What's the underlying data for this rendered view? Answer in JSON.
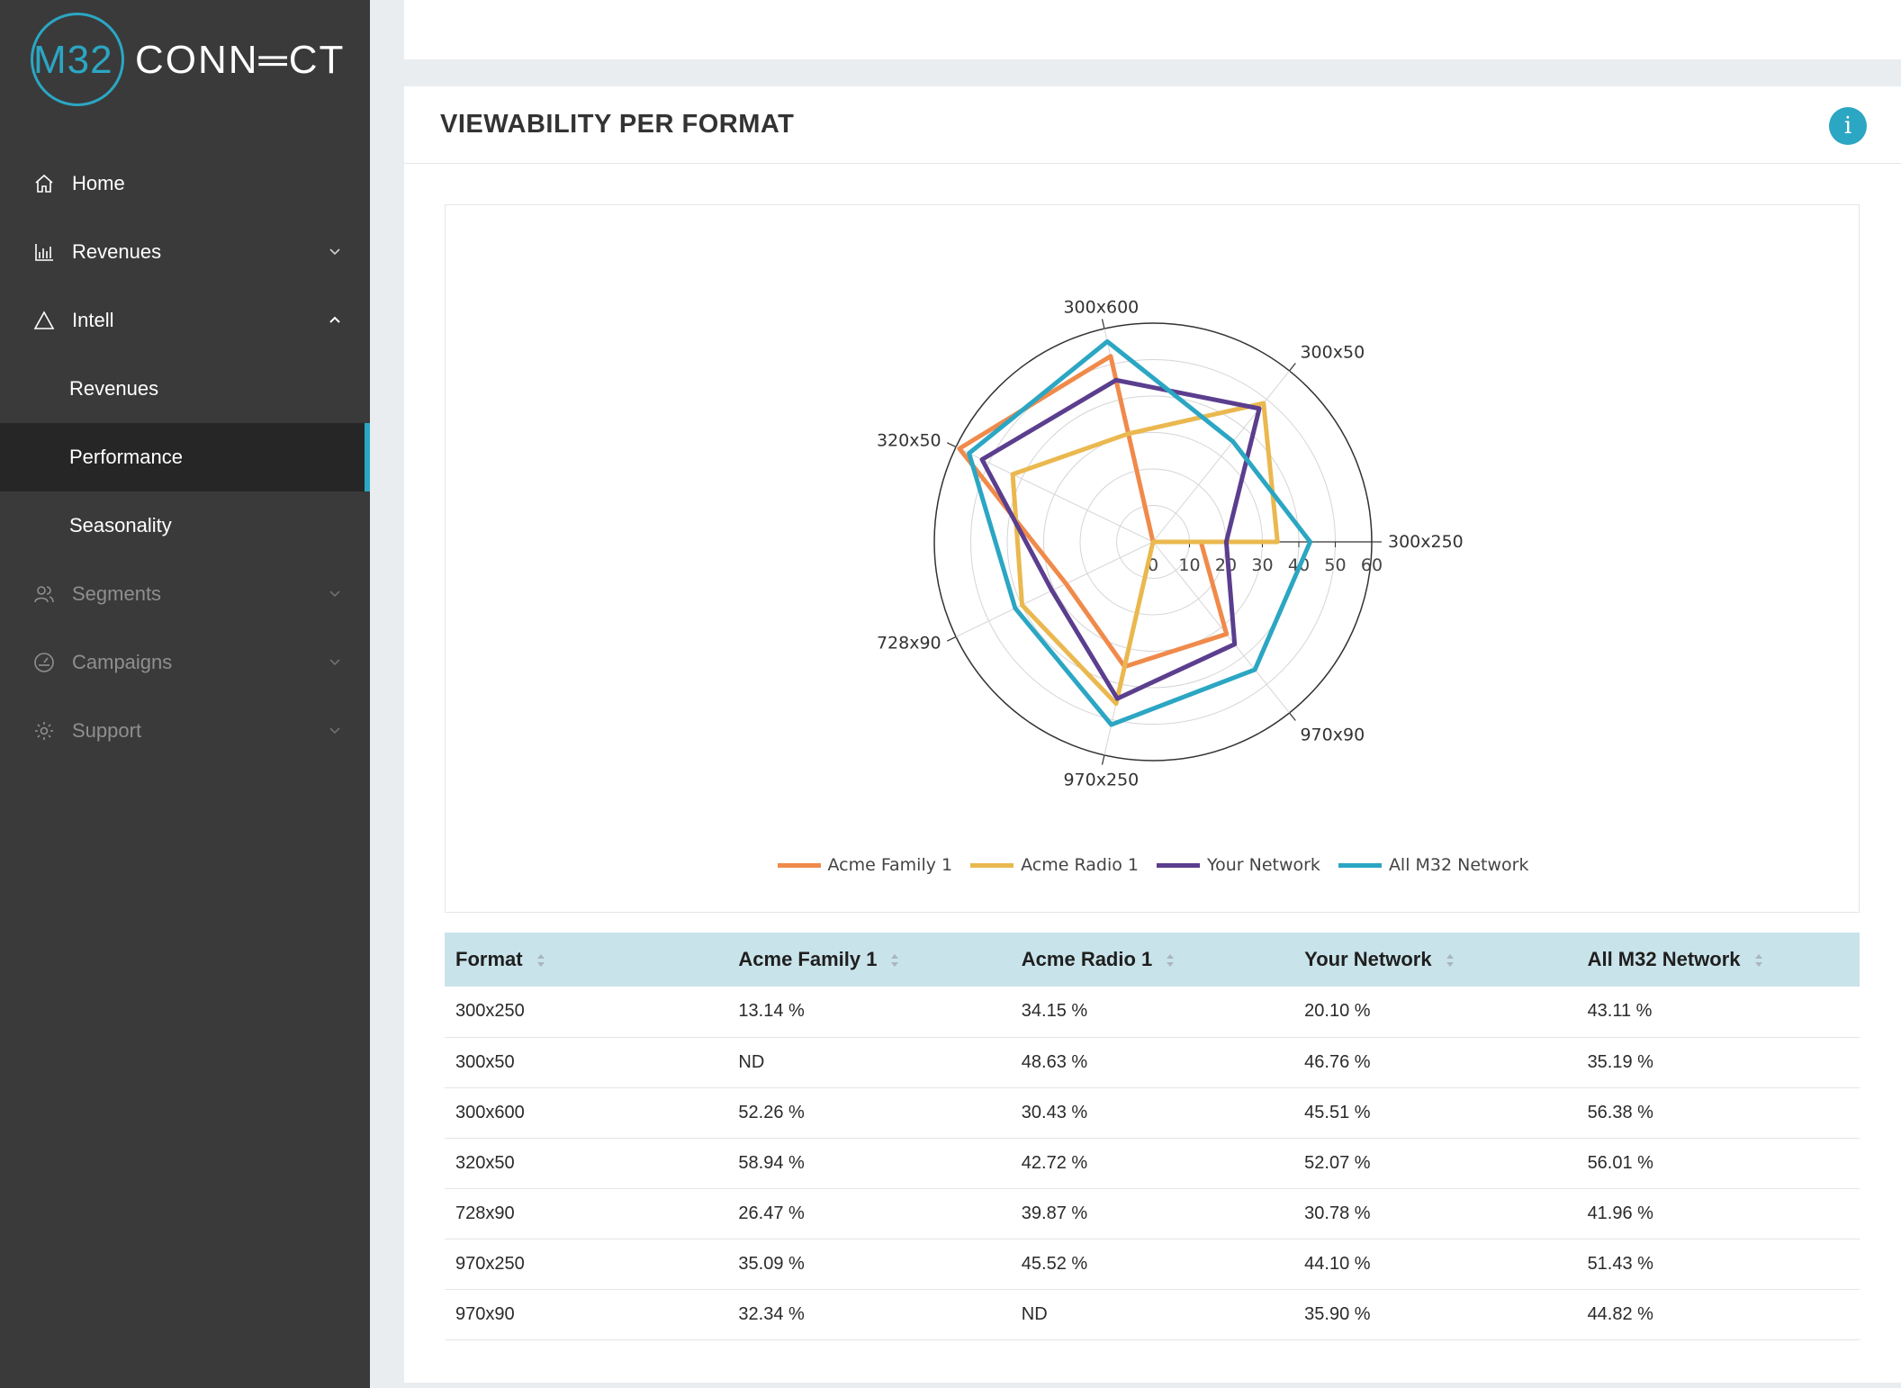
{
  "brand": {
    "prefix": "M32",
    "name": "CONN═CT",
    "accent": "#2ba6c3"
  },
  "sidebar": {
    "items": [
      {
        "label": "Home",
        "icon": "home-icon"
      },
      {
        "label": "Revenues",
        "icon": "bar-chart-icon",
        "expanded": false
      },
      {
        "label": "Intell",
        "icon": "triangle-icon",
        "expanded": true,
        "children": [
          {
            "label": "Revenues"
          },
          {
            "label": "Performance",
            "active": true
          },
          {
            "label": "Seasonality"
          }
        ]
      },
      {
        "label": "Segments",
        "icon": "users-icon",
        "expanded": false
      },
      {
        "label": "Campaigns",
        "icon": "gauge-icon",
        "expanded": false
      },
      {
        "label": "Support",
        "icon": "gear-icon",
        "expanded": false
      }
    ]
  },
  "panel": {
    "title": "VIEWABILITY PER FORMAT",
    "info_label": "i"
  },
  "chart_data": {
    "type": "radar",
    "categories": [
      "300x250",
      "300x50",
      "300x600",
      "320x50",
      "728x90",
      "970x250",
      "970x90"
    ],
    "radial_ticks": [
      0,
      10,
      20,
      30,
      40,
      50,
      60
    ],
    "rlim": [
      0,
      60
    ],
    "legend_position": "bottom",
    "series": [
      {
        "name": "Acme Family 1",
        "color": "#f08a4b",
        "values": [
          13.14,
          0,
          52.26,
          58.94,
          26.47,
          35.09,
          32.34
        ]
      },
      {
        "name": "Acme Radio 1",
        "color": "#eab84f",
        "values": [
          34.15,
          48.63,
          30.43,
          42.72,
          39.87,
          45.52,
          0
        ]
      },
      {
        "name": "Your Network",
        "color": "#5b3e8e",
        "values": [
          20.1,
          46.76,
          45.51,
          52.07,
          30.78,
          44.1,
          35.9
        ]
      },
      {
        "name": "All M32 Network",
        "color": "#2ba6c3",
        "values": [
          43.11,
          35.19,
          56.38,
          56.01,
          41.96,
          51.43,
          44.82
        ]
      }
    ]
  },
  "table": {
    "headers": [
      "Format",
      "Acme Family 1",
      "Acme Radio 1",
      "Your Network",
      "All M32 Network"
    ],
    "rows": [
      [
        "300x250",
        "13.14 %",
        "34.15 %",
        "20.10 %",
        "43.11 %"
      ],
      [
        "300x50",
        "ND",
        "48.63 %",
        "46.76 %",
        "35.19 %"
      ],
      [
        "300x600",
        "52.26 %",
        "30.43 %",
        "45.51 %",
        "56.38 %"
      ],
      [
        "320x50",
        "58.94 %",
        "42.72 %",
        "52.07 %",
        "56.01 %"
      ],
      [
        "728x90",
        "26.47 %",
        "39.87 %",
        "30.78 %",
        "41.96 %"
      ],
      [
        "970x250",
        "35.09 %",
        "45.52 %",
        "44.10 %",
        "51.43 %"
      ],
      [
        "970x90",
        "32.34 %",
        "ND",
        "35.90 %",
        "44.82 %"
      ]
    ]
  }
}
